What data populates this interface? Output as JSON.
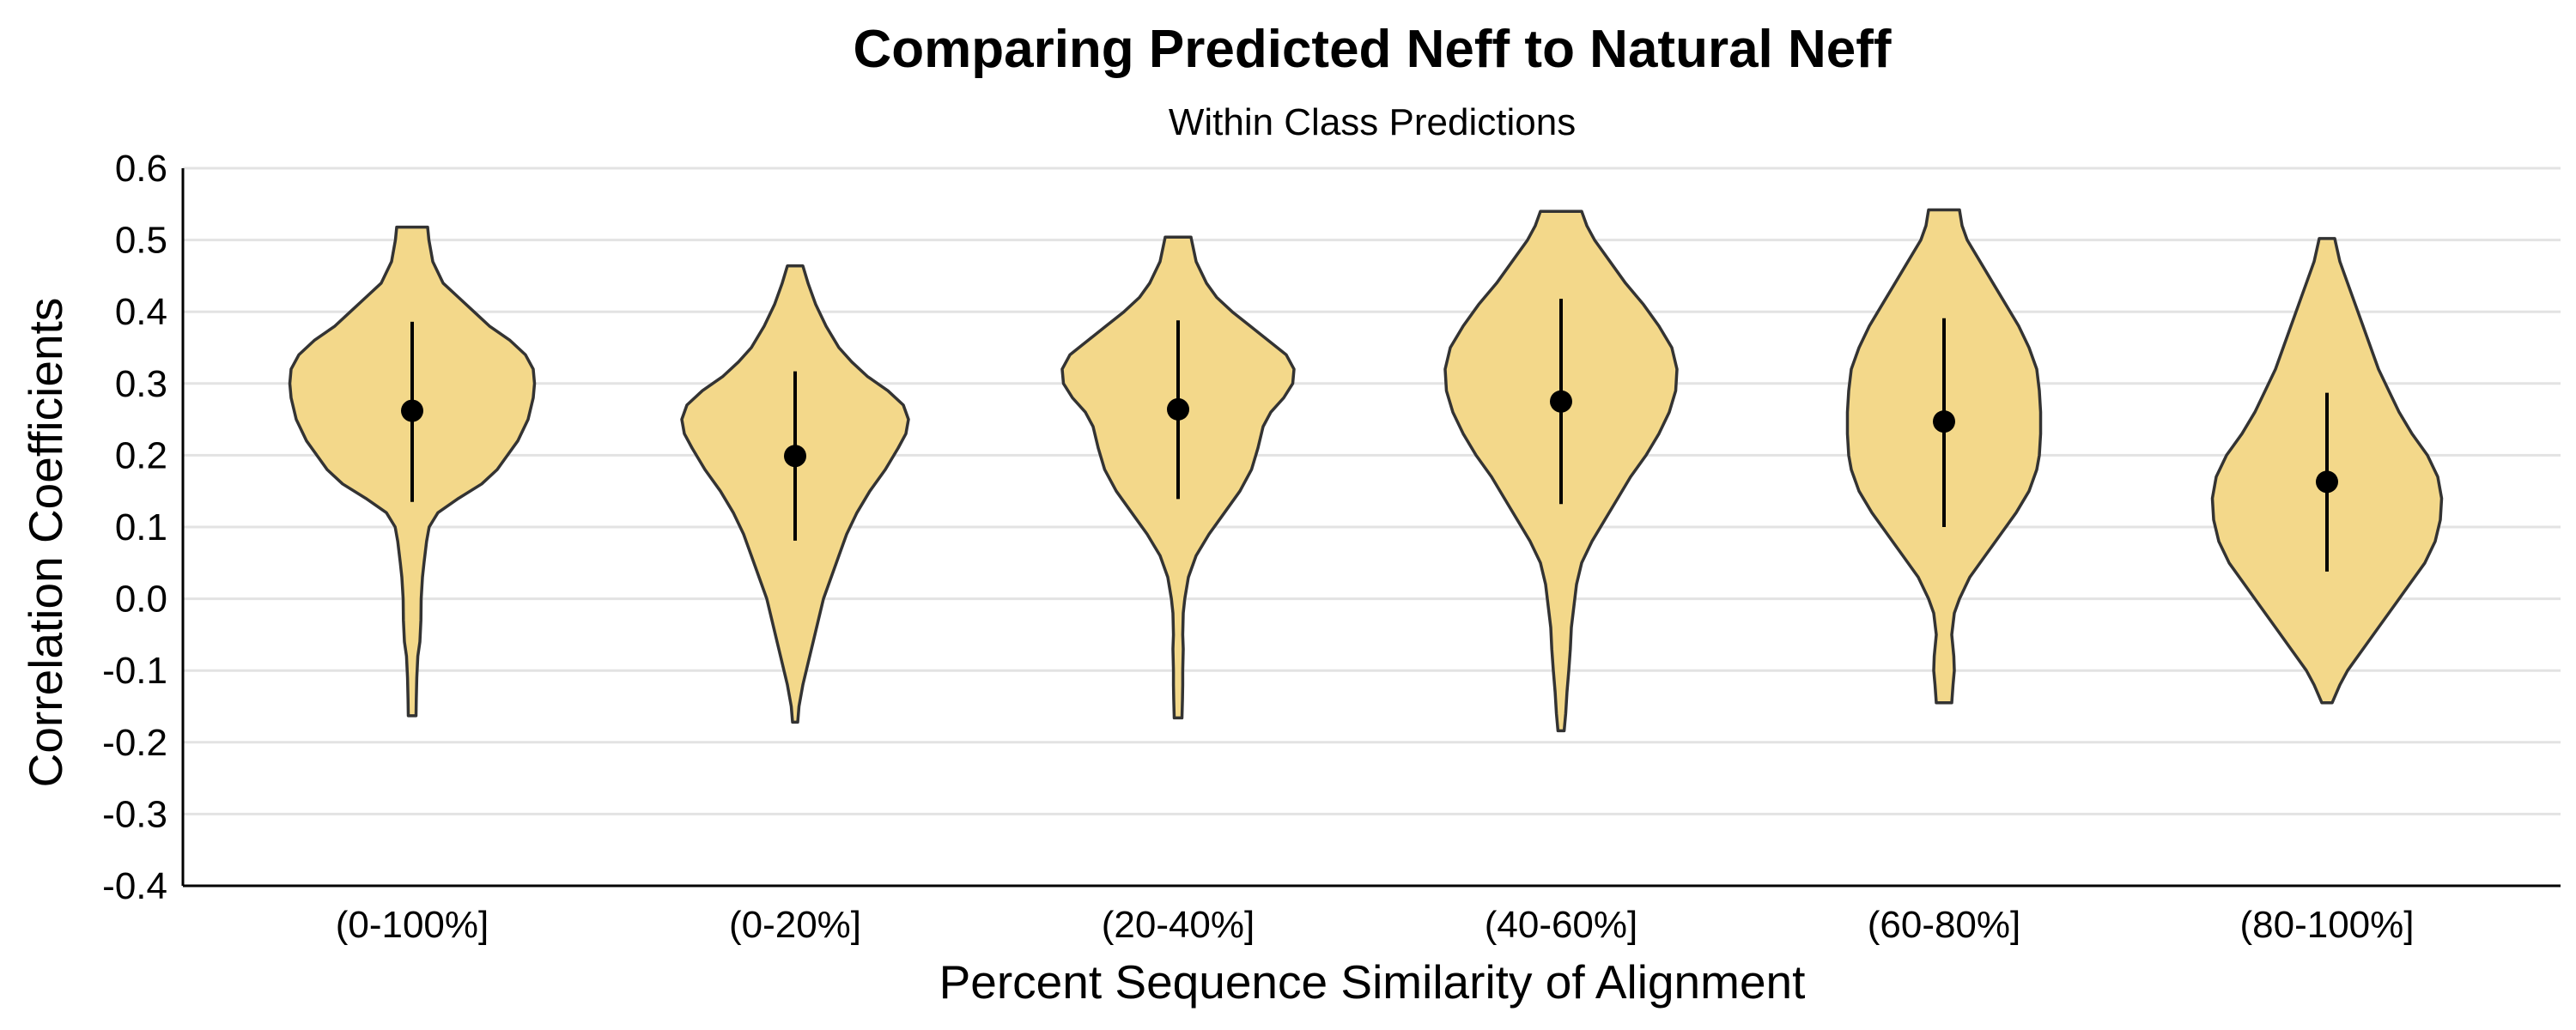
{
  "chart_data": {
    "type": "violin",
    "title": "Comparing Predicted Neff to Natural Neff",
    "subtitle": "Within Class Predictions",
    "xlabel": "Percent Sequence Similarity of Alignment",
    "ylabel": "Correlation Coefficients",
    "ylim": [
      -0.4,
      0.6
    ],
    "y_ticks": [
      "-0.4",
      "-0.3",
      "-0.2",
      "-0.1",
      "0.0",
      "0.1",
      "0.2",
      "0.3",
      "0.4",
      "0.5",
      "0.6"
    ],
    "y_tick_values": [
      -0.4,
      -0.3,
      -0.2,
      -0.1,
      0.0,
      0.1,
      0.2,
      0.3,
      0.4,
      0.5,
      0.6
    ],
    "grid": "horizontal major lines",
    "fill_color": "#f3d88a",
    "outline_color": "#333333",
    "categories": [
      "(0-100%]",
      "(0-20%]",
      "(20-40%]",
      "(40-60%]",
      "(60-80%]",
      "(80-100%]"
    ],
    "violins": [
      {
        "category": "(0-100%]",
        "median": 0.262,
        "lower": 0.135,
        "upper": 0.386,
        "min": -0.163,
        "max": 0.518,
        "profile": [
          [
            -0.163,
            0.015
          ],
          [
            -0.14,
            0.016
          ],
          [
            -0.11,
            0.018
          ],
          [
            -0.08,
            0.022
          ],
          [
            -0.06,
            0.03
          ],
          [
            -0.03,
            0.034
          ],
          [
            0.0,
            0.035
          ],
          [
            0.03,
            0.04
          ],
          [
            0.05,
            0.046
          ],
          [
            0.08,
            0.056
          ],
          [
            0.1,
            0.066
          ],
          [
            0.12,
            0.1
          ],
          [
            0.14,
            0.18
          ],
          [
            0.16,
            0.27
          ],
          [
            0.18,
            0.33
          ],
          [
            0.2,
            0.37
          ],
          [
            0.22,
            0.41
          ],
          [
            0.25,
            0.45
          ],
          [
            0.28,
            0.47
          ],
          [
            0.3,
            0.475
          ],
          [
            0.32,
            0.47
          ],
          [
            0.34,
            0.44
          ],
          [
            0.36,
            0.38
          ],
          [
            0.38,
            0.3
          ],
          [
            0.4,
            0.24
          ],
          [
            0.42,
            0.18
          ],
          [
            0.44,
            0.12
          ],
          [
            0.47,
            0.08
          ],
          [
            0.5,
            0.065
          ],
          [
            0.518,
            0.06
          ]
        ]
      },
      {
        "category": "(0-20%]",
        "median": 0.199,
        "lower": 0.081,
        "upper": 0.317,
        "min": -0.172,
        "max": 0.464,
        "profile": [
          [
            -0.172,
            0.01
          ],
          [
            -0.15,
            0.015
          ],
          [
            -0.12,
            0.03
          ],
          [
            -0.09,
            0.05
          ],
          [
            -0.06,
            0.07
          ],
          [
            -0.03,
            0.09
          ],
          [
            0.0,
            0.11
          ],
          [
            0.03,
            0.14
          ],
          [
            0.06,
            0.17
          ],
          [
            0.09,
            0.2
          ],
          [
            0.12,
            0.24
          ],
          [
            0.15,
            0.29
          ],
          [
            0.18,
            0.35
          ],
          [
            0.21,
            0.4
          ],
          [
            0.23,
            0.43
          ],
          [
            0.25,
            0.44
          ],
          [
            0.27,
            0.42
          ],
          [
            0.29,
            0.36
          ],
          [
            0.31,
            0.28
          ],
          [
            0.33,
            0.22
          ],
          [
            0.35,
            0.17
          ],
          [
            0.38,
            0.12
          ],
          [
            0.41,
            0.08
          ],
          [
            0.44,
            0.05
          ],
          [
            0.464,
            0.03
          ]
        ]
      },
      {
        "category": "(20-40%]",
        "median": 0.264,
        "lower": 0.139,
        "upper": 0.388,
        "min": -0.166,
        "max": 0.504,
        "profile": [
          [
            -0.166,
            0.015
          ],
          [
            -0.14,
            0.017
          ],
          [
            -0.12,
            0.018
          ],
          [
            -0.1,
            0.018
          ],
          [
            -0.07,
            0.02
          ],
          [
            -0.05,
            0.018
          ],
          [
            -0.02,
            0.02
          ],
          [
            0.0,
            0.026
          ],
          [
            0.03,
            0.04
          ],
          [
            0.06,
            0.07
          ],
          [
            0.09,
            0.12
          ],
          [
            0.12,
            0.18
          ],
          [
            0.15,
            0.24
          ],
          [
            0.18,
            0.285
          ],
          [
            0.21,
            0.31
          ],
          [
            0.24,
            0.33
          ],
          [
            0.26,
            0.36
          ],
          [
            0.28,
            0.41
          ],
          [
            0.3,
            0.445
          ],
          [
            0.32,
            0.45
          ],
          [
            0.34,
            0.42
          ],
          [
            0.36,
            0.35
          ],
          [
            0.38,
            0.28
          ],
          [
            0.4,
            0.21
          ],
          [
            0.42,
            0.15
          ],
          [
            0.44,
            0.11
          ],
          [
            0.47,
            0.07
          ],
          [
            0.504,
            0.05
          ]
        ]
      },
      {
        "category": "(40-60%]",
        "median": 0.275,
        "lower": 0.132,
        "upper": 0.418,
        "min": -0.184,
        "max": 0.54,
        "profile": [
          [
            -0.184,
            0.012
          ],
          [
            -0.16,
            0.018
          ],
          [
            -0.13,
            0.023
          ],
          [
            -0.1,
            0.03
          ],
          [
            -0.07,
            0.036
          ],
          [
            -0.04,
            0.04
          ],
          [
            -0.01,
            0.05
          ],
          [
            0.02,
            0.06
          ],
          [
            0.05,
            0.08
          ],
          [
            0.08,
            0.12
          ],
          [
            0.11,
            0.17
          ],
          [
            0.14,
            0.22
          ],
          [
            0.17,
            0.27
          ],
          [
            0.2,
            0.33
          ],
          [
            0.23,
            0.38
          ],
          [
            0.26,
            0.42
          ],
          [
            0.29,
            0.445
          ],
          [
            0.32,
            0.45
          ],
          [
            0.35,
            0.43
          ],
          [
            0.38,
            0.38
          ],
          [
            0.41,
            0.32
          ],
          [
            0.44,
            0.25
          ],
          [
            0.47,
            0.19
          ],
          [
            0.5,
            0.13
          ],
          [
            0.52,
            0.1
          ],
          [
            0.54,
            0.08
          ]
        ]
      },
      {
        "category": "(60-80%]",
        "median": 0.247,
        "lower": 0.1,
        "upper": 0.391,
        "min": -0.145,
        "max": 0.542,
        "profile": [
          [
            -0.145,
            0.03
          ],
          [
            -0.12,
            0.035
          ],
          [
            -0.1,
            0.04
          ],
          [
            -0.08,
            0.038
          ],
          [
            -0.05,
            0.03
          ],
          [
            -0.02,
            0.04
          ],
          [
            0.0,
            0.06
          ],
          [
            0.03,
            0.1
          ],
          [
            0.06,
            0.16
          ],
          [
            0.09,
            0.22
          ],
          [
            0.12,
            0.28
          ],
          [
            0.15,
            0.33
          ],
          [
            0.18,
            0.36
          ],
          [
            0.2,
            0.37
          ],
          [
            0.23,
            0.375
          ],
          [
            0.26,
            0.375
          ],
          [
            0.29,
            0.37
          ],
          [
            0.32,
            0.36
          ],
          [
            0.35,
            0.33
          ],
          [
            0.38,
            0.29
          ],
          [
            0.41,
            0.24
          ],
          [
            0.44,
            0.19
          ],
          [
            0.47,
            0.14
          ],
          [
            0.5,
            0.09
          ],
          [
            0.52,
            0.07
          ],
          [
            0.542,
            0.06
          ]
        ]
      },
      {
        "category": "(80-100%]",
        "median": 0.163,
        "lower": 0.038,
        "upper": 0.287,
        "min": -0.145,
        "max": 0.502,
        "profile": [
          [
            -0.145,
            0.02
          ],
          [
            -0.12,
            0.05
          ],
          [
            -0.1,
            0.08
          ],
          [
            -0.07,
            0.14
          ],
          [
            -0.04,
            0.2
          ],
          [
            -0.01,
            0.26
          ],
          [
            0.02,
            0.32
          ],
          [
            0.05,
            0.38
          ],
          [
            0.08,
            0.42
          ],
          [
            0.11,
            0.44
          ],
          [
            0.14,
            0.445
          ],
          [
            0.17,
            0.43
          ],
          [
            0.2,
            0.39
          ],
          [
            0.23,
            0.33
          ],
          [
            0.26,
            0.28
          ],
          [
            0.29,
            0.24
          ],
          [
            0.32,
            0.2
          ],
          [
            0.35,
            0.17
          ],
          [
            0.38,
            0.14
          ],
          [
            0.41,
            0.11
          ],
          [
            0.44,
            0.08
          ],
          [
            0.47,
            0.05
          ],
          [
            0.502,
            0.03
          ]
        ]
      }
    ]
  }
}
